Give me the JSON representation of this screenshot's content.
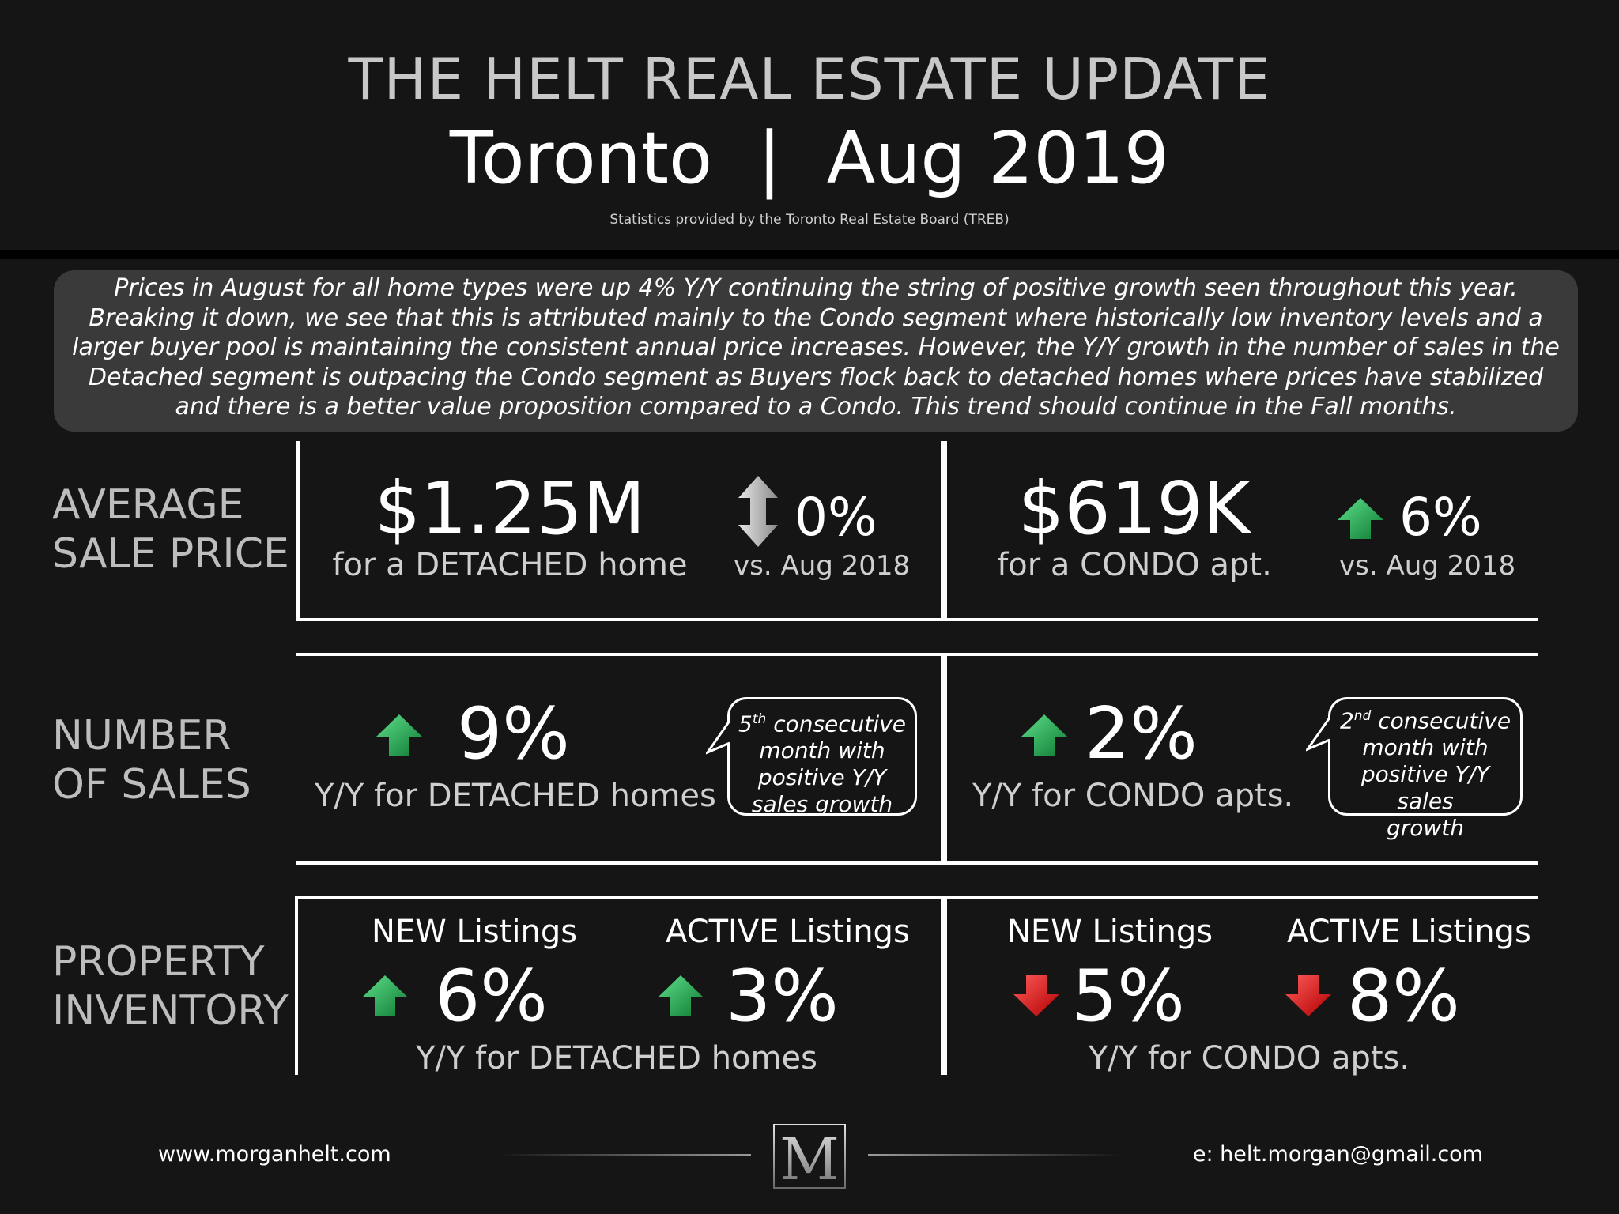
{
  "header": {
    "title": "THE HELT REAL ESTATE UPDATE",
    "subtitle": "Toronto  |  Aug 2019",
    "credit": "Statistics provided by the Toronto Real Estate Board (TREB)"
  },
  "summary": "Prices in August for all home types were up 4% Y/Y continuing the string of positive growth seen throughout this year. Breaking it down, we see that this is attributed mainly to the Condo segment where historically low inventory levels and a larger buyer pool is maintaining the consistent annual price increases. However, the Y/Y growth in the number of sales in the Detached segment is outpacing the Condo segment as Buyers flock back to detached homes where prices have stabilized and there is a better value proposition compared to a Condo. This trend should continue in the Fall months.",
  "average_sale_price": {
    "label_line1": "AVERAGE",
    "label_line2": "SALE PRICE",
    "detached": {
      "value": "$1.25M",
      "caption": "for a DETACHED home",
      "change": "0%",
      "direction": "flat",
      "compare": "vs. Aug 2018"
    },
    "condo": {
      "value": "$619K",
      "caption": "for a CONDO apt.",
      "change": "6%",
      "direction": "up",
      "compare": "vs. Aug 2018"
    }
  },
  "number_of_sales": {
    "label_line1": "NUMBER",
    "label_line2": "OF SALES",
    "detached": {
      "change": "9%",
      "direction": "up",
      "caption": "Y/Y for DETACHED homes",
      "callout": {
        "ordinal": "5",
        "suffix": "th",
        "line1_rest": " consecutive",
        "line2": "month with",
        "line3": "positive Y/Y",
        "line4": "sales growth"
      }
    },
    "condo": {
      "change": "2%",
      "direction": "up",
      "caption": "Y/Y for CONDO apts.",
      "callout": {
        "ordinal": "2",
        "suffix": "nd",
        "line1_rest": " consecutive",
        "line2": "month with",
        "line3": "positive Y/Y sales",
        "line4": "growth"
      }
    }
  },
  "property_inventory": {
    "label_line1": "PROPERTY",
    "label_line2": "INVENTORY",
    "detached": {
      "new_label": "NEW Listings",
      "new_change": "6%",
      "new_direction": "up",
      "active_label": "ACTIVE Listings",
      "active_change": "3%",
      "active_direction": "up",
      "caption": "Y/Y for DETACHED homes"
    },
    "condo": {
      "new_label": "NEW Listings",
      "new_change": "5%",
      "new_direction": "down",
      "active_label": "ACTIVE Listings",
      "active_change": "8%",
      "active_direction": "down",
      "caption": "Y/Y for CONDO apts."
    }
  },
  "footer": {
    "website": "www.morganhelt.com",
    "email": "e: helt.morgan@gmail.com",
    "logo_letter": "M"
  },
  "colors": {
    "up": "#1fa34a",
    "down": "#e01b1b",
    "flat": "#bdbdbd",
    "background": "#151515",
    "panel": "#3a3a3a"
  },
  "icons": [
    "arrow-up-icon",
    "arrow-down-icon",
    "double-arrow-icon",
    "monogram-logo"
  ]
}
